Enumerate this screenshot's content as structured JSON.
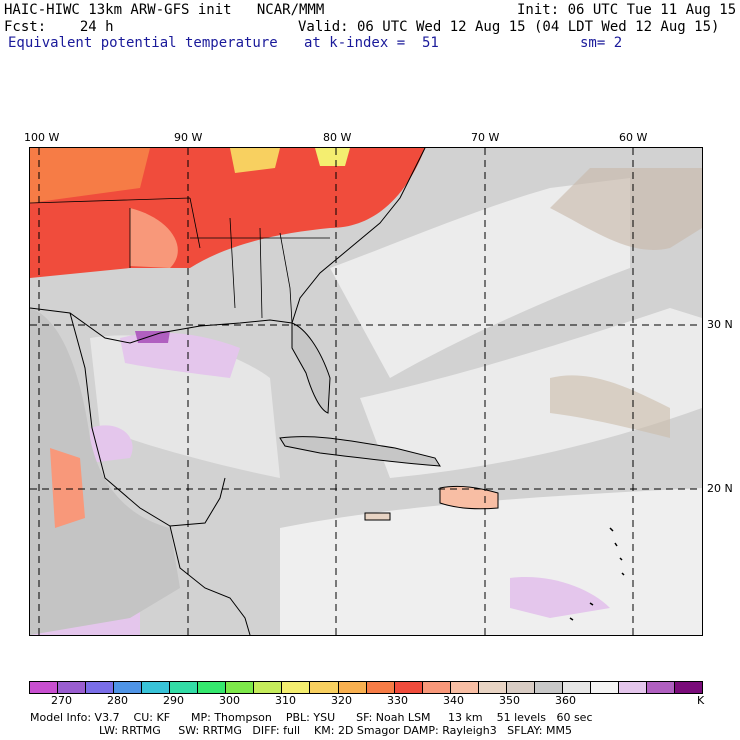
{
  "header": {
    "model_line": "HAIC-HIWC 13km ARW-GFS init   NCAR/MMM",
    "init_line": "Init: 06 UTC Tue 11 Aug 15",
    "fcst_line": "Fcst:    24 h",
    "valid_line": "Valid: 06 UTC Wed 12 Aug 15 (04 LDT Wed 12 Aug 15)",
    "field_name": "Equivalent potential temperature",
    "level": "at k-index =  51",
    "smoothing": "sm= 2"
  },
  "map": {
    "lon_labels": [
      "100 W",
      "90 W",
      "80 W",
      "70 W",
      "60 W"
    ],
    "lat_labels": [
      "30 N",
      "20 N"
    ]
  },
  "colorbar": {
    "colors": [
      "#c84fd0",
      "#9a5ed0",
      "#7a6ee8",
      "#4f94e6",
      "#39c3d8",
      "#33dca6",
      "#35e86e",
      "#7de84a",
      "#c5ec5c",
      "#f4ee70",
      "#f8d060",
      "#f8b050",
      "#f67c46",
      "#f04c3c",
      "#f8987a",
      "#f8bea4",
      "#e8d4c4",
      "#d8ccc4",
      "#c8c8c8",
      "#e6e6e6",
      "#f4f4f4",
      "#e4c6ec",
      "#b060c0",
      "#7a0c7a"
    ],
    "tick_labels": [
      "270",
      "280",
      "290",
      "300",
      "310",
      "320",
      "330",
      "340",
      "350",
      "360"
    ],
    "unit": "K"
  },
  "footer": {
    "line1": "Model Info: V3.7    CU: KF      MP: Thompson    PBL: YSU      SF: Noah LSM     13 km    51 levels   60 sec",
    "line2": "LW: RRTMG     SW: RRTMG   DIFF: full    KM: 2D Smagor DAMP: Rayleigh3   SFLAY: MM5"
  }
}
